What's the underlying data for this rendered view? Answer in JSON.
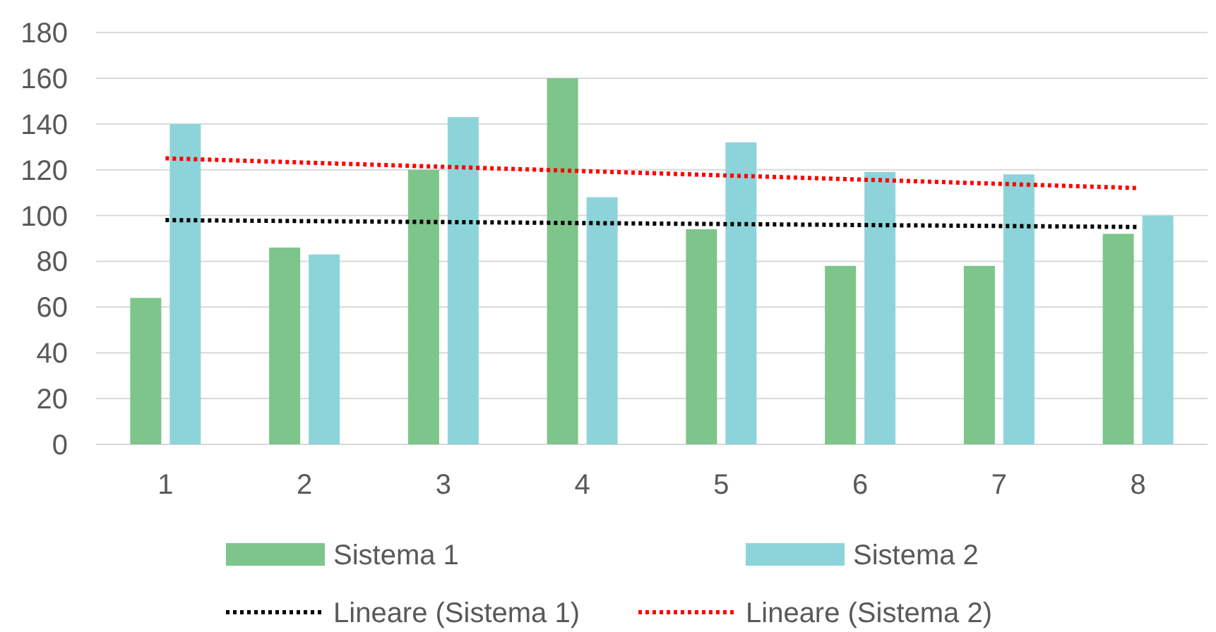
{
  "chart_data": {
    "type": "bar",
    "categories": [
      "1",
      "2",
      "3",
      "4",
      "5",
      "6",
      "7",
      "8"
    ],
    "series": [
      {
        "name": "Sistema 1",
        "color": "#7dc58a",
        "values": [
          64,
          86,
          120,
          160,
          94,
          78,
          78,
          92
        ]
      },
      {
        "name": "Sistema 2",
        "color": "#8dd4da",
        "values": [
          140,
          83,
          143,
          108,
          132,
          119,
          118,
          100
        ]
      },
      {
        "name": "Lineare (Sistema 1)",
        "type": "line",
        "color": "#000000",
        "line_style": "dotted",
        "x": [
          "1",
          "8"
        ],
        "values": [
          98,
          95
        ]
      },
      {
        "name": "Lineare (Sistema 2)",
        "type": "line",
        "color": "#ff0000",
        "line_style": "dotted",
        "x": [
          "1",
          "8"
        ],
        "values": [
          125,
          112
        ]
      }
    ],
    "ylim": [
      0,
      180
    ],
    "yticks": [
      0,
      20,
      40,
      60,
      80,
      100,
      120,
      140,
      160,
      180
    ],
    "grid": "y",
    "legend": "bottom"
  }
}
